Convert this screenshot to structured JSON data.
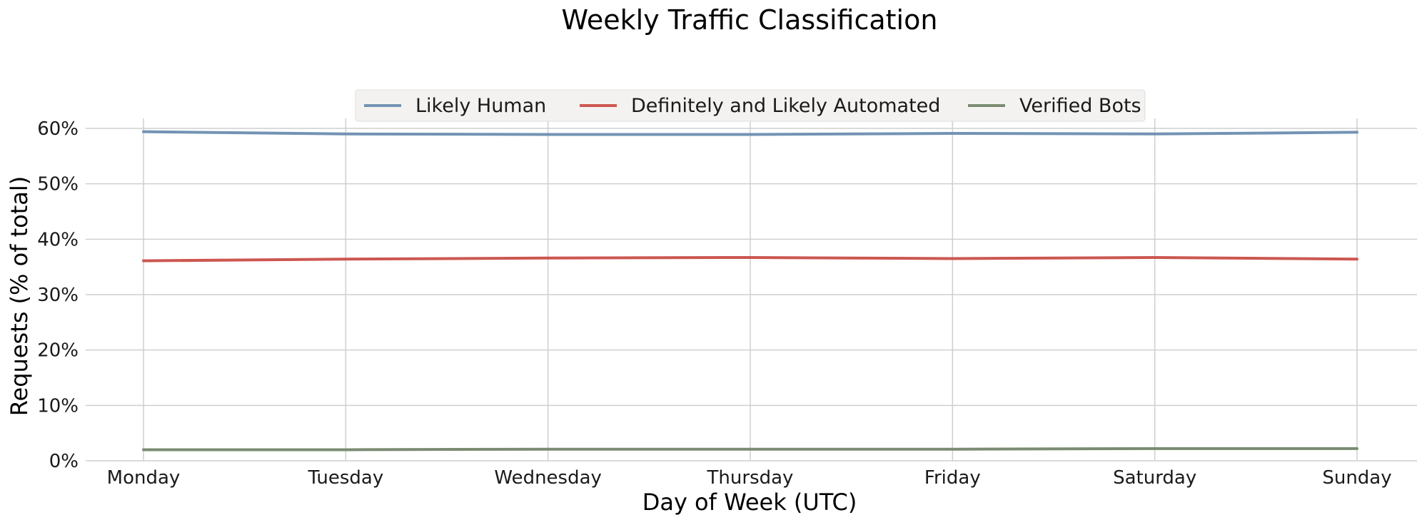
{
  "chart_data": {
    "type": "line",
    "title": "Weekly Traffic Classification",
    "xlabel": "Day of Week (UTC)",
    "ylabel": "Requests (% of total)",
    "categories": [
      "Monday",
      "Tuesday",
      "Wednesday",
      "Thursday",
      "Friday",
      "Saturday",
      "Sunday"
    ],
    "ylim": [
      0,
      60
    ],
    "yticks": [
      0,
      10,
      20,
      30,
      40,
      50,
      60
    ],
    "ytick_labels": [
      "0%",
      "10%",
      "20%",
      "30%",
      "40%",
      "50%",
      "60%"
    ],
    "grid": true,
    "legend_position": "top-center",
    "series": [
      {
        "name": "Likely Human",
        "color": "#7393b3",
        "values": [
          59.4,
          59.0,
          58.9,
          58.9,
          59.1,
          59.0,
          59.3
        ]
      },
      {
        "name": "Definitely and Likely Automated",
        "color": "#cc5750",
        "values": [
          36.1,
          36.4,
          36.6,
          36.7,
          36.5,
          36.7,
          36.4
        ]
      },
      {
        "name": "Verified Bots",
        "color": "#7a8c72",
        "values": [
          2.0,
          2.0,
          2.1,
          2.1,
          2.1,
          2.2,
          2.2
        ]
      }
    ]
  }
}
